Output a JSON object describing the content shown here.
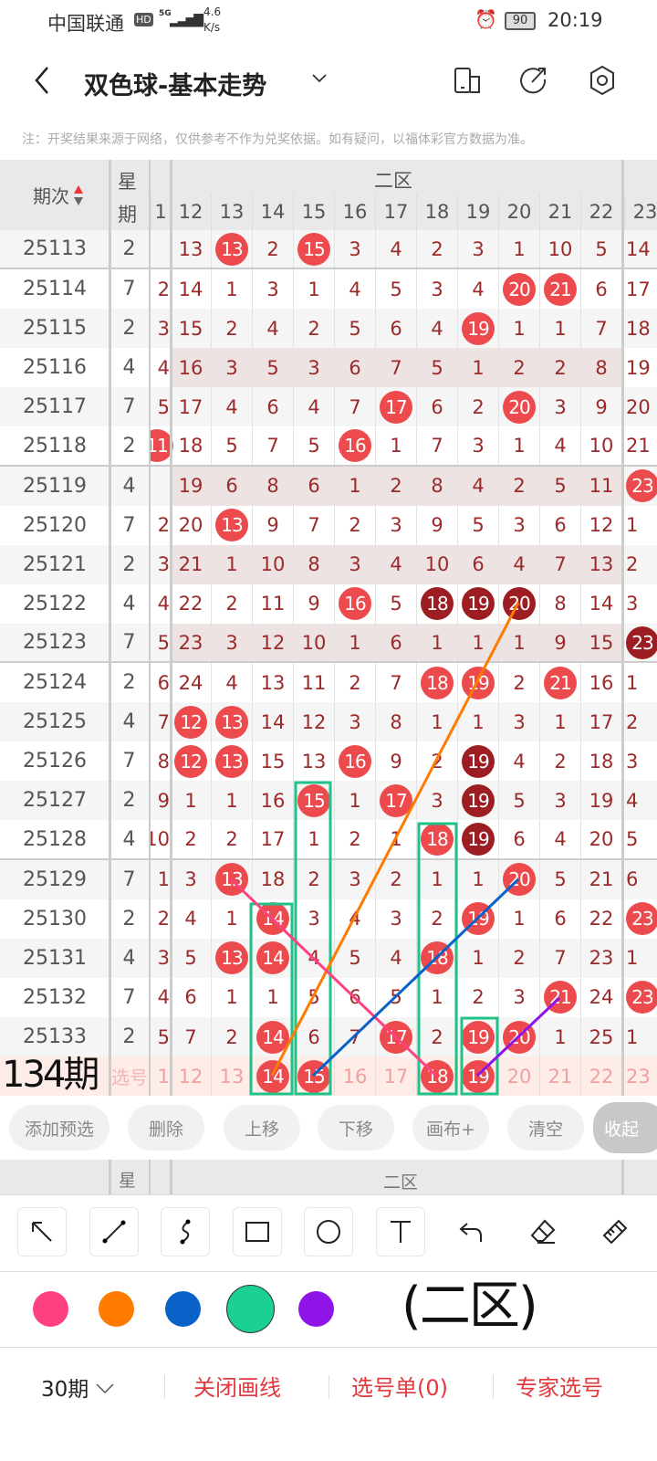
{
  "status_bar": {
    "carrier": "中国联通",
    "hd": "HD",
    "network": "5G",
    "speed_value": "4.6",
    "speed_unit": "K/s",
    "battery": "90",
    "time": "20:19"
  },
  "header": {
    "title": "双色球-基本走势",
    "icons": [
      "back-icon",
      "chevron-down-icon",
      "device-icon",
      "share-icon",
      "settings-icon"
    ]
  },
  "notice": "注：开奖结果来源于网络，仅供参考不作为兑奖依据。如有疑问，以福体彩官方数据为准。",
  "table": {
    "col_issue": "期次",
    "col_week_1": "星",
    "col_week_2": "期",
    "zone_label": "二区",
    "columns": [
      "1",
      "12",
      "13",
      "14",
      "15",
      "16",
      "17",
      "18",
      "19",
      "20",
      "21",
      "22",
      "23"
    ],
    "rows": [
      {
        "issue": "25113",
        "week": "2",
        "c11": "",
        "vals": [
          13,
          13,
          2,
          15,
          3,
          4,
          2,
          3,
          1,
          10,
          5
        ],
        "hits": [
          13,
          15
        ],
        "dark": [],
        "c23": "14",
        "h23": 0
      },
      {
        "issue": "25114",
        "week": "7",
        "c11": "2",
        "vals": [
          14,
          1,
          3,
          1,
          4,
          5,
          3,
          4,
          20,
          21,
          6
        ],
        "hits": [
          20,
          21
        ],
        "dark": [],
        "c23": "17",
        "h23": 0
      },
      {
        "issue": "25115",
        "week": "2",
        "c11": "3",
        "vals": [
          15,
          2,
          4,
          2,
          5,
          6,
          4,
          19,
          1,
          1,
          7
        ],
        "hits": [
          19
        ],
        "dark": [],
        "c23": "18",
        "h23": 0
      },
      {
        "issue": "25116",
        "week": "4",
        "c11": "4",
        "vals": [
          16,
          3,
          5,
          3,
          6,
          7,
          5,
          1,
          2,
          2,
          8
        ],
        "hits": [],
        "dark": [],
        "c23": "19",
        "h23": 0
      },
      {
        "issue": "25117",
        "week": "7",
        "c11": "5",
        "vals": [
          17,
          4,
          6,
          4,
          7,
          17,
          6,
          2,
          20,
          3,
          9
        ],
        "hits": [
          17,
          20
        ],
        "dark": [],
        "c23": "20",
        "h23": 0
      },
      {
        "issue": "25118",
        "week": "2",
        "c11": "11",
        "h11": 1,
        "vals": [
          18,
          5,
          7,
          5,
          16,
          1,
          7,
          3,
          1,
          4,
          10
        ],
        "hits": [
          16
        ],
        "dark": [],
        "c23": "21",
        "h23": 0
      },
      {
        "issue": "25119",
        "week": "4",
        "c11": "",
        "vals": [
          19,
          6,
          8,
          6,
          1,
          2,
          8,
          4,
          2,
          5,
          11
        ],
        "hits": [],
        "dark": [],
        "c23": "23",
        "h23": 1
      },
      {
        "issue": "25120",
        "week": "7",
        "c11": "2",
        "vals": [
          20,
          13,
          9,
          7,
          2,
          3,
          9,
          5,
          3,
          6,
          12
        ],
        "hits": [
          13
        ],
        "dark": [],
        "c23": "1",
        "h23": 0
      },
      {
        "issue": "25121",
        "week": "2",
        "c11": "3",
        "vals": [
          21,
          1,
          10,
          8,
          3,
          4,
          10,
          6,
          4,
          7,
          13
        ],
        "hits": [],
        "dark": [],
        "c23": "2",
        "h23": 0
      },
      {
        "issue": "25122",
        "week": "4",
        "c11": "4",
        "vals": [
          22,
          2,
          11,
          9,
          16,
          5,
          18,
          19,
          20,
          8,
          14
        ],
        "hits": [
          16,
          18,
          19,
          20
        ],
        "dark": [
          18,
          19,
          20
        ],
        "c23": "3",
        "h23": 0
      },
      {
        "issue": "25123",
        "week": "7",
        "c11": "5",
        "vals": [
          23,
          3,
          12,
          10,
          1,
          6,
          1,
          1,
          1,
          9,
          15
        ],
        "hits": [],
        "dark": [],
        "c23": "23",
        "h23": 2
      },
      {
        "issue": "25124",
        "week": "2",
        "c11": "6",
        "vals": [
          24,
          4,
          13,
          11,
          2,
          7,
          18,
          19,
          2,
          21,
          16
        ],
        "hits": [
          18,
          19,
          21
        ],
        "dark": [],
        "c23": "1",
        "h23": 0
      },
      {
        "issue": "25125",
        "week": "4",
        "c11": "7",
        "vals": [
          12,
          13,
          14,
          12,
          3,
          8,
          1,
          1,
          3,
          1,
          17
        ],
        "hits": [
          12,
          13
        ],
        "dark": [],
        "c23": "2",
        "h23": 0
      },
      {
        "issue": "25126",
        "week": "7",
        "c11": "8",
        "vals": [
          12,
          13,
          15,
          13,
          16,
          9,
          2,
          19,
          4,
          2,
          18
        ],
        "hits": [
          12,
          13,
          16,
          19
        ],
        "dark": [
          19
        ],
        "c23": "3",
        "h23": 0
      },
      {
        "issue": "25127",
        "week": "2",
        "c11": "9",
        "vals": [
          1,
          1,
          16,
          15,
          1,
          17,
          3,
          19,
          5,
          3,
          19
        ],
        "hits": [
          15,
          17,
          19
        ],
        "dark": [
          19
        ],
        "c23": "4",
        "h23": 0
      },
      {
        "issue": "25128",
        "week": "4",
        "c11": "10",
        "vals": [
          2,
          2,
          17,
          1,
          2,
          1,
          18,
          19,
          6,
          4,
          20
        ],
        "hits": [
          18,
          19
        ],
        "dark": [
          19
        ],
        "c23": "5",
        "h23": 0
      },
      {
        "issue": "25129",
        "week": "7",
        "c11": "1",
        "vals": [
          3,
          13,
          18,
          2,
          3,
          2,
          1,
          1,
          20,
          5,
          21
        ],
        "hits": [
          13,
          20
        ],
        "dark": [],
        "c23": "6",
        "h23": 0
      },
      {
        "issue": "25130",
        "week": "2",
        "c11": "2",
        "vals": [
          4,
          1,
          14,
          3,
          4,
          3,
          2,
          19,
          1,
          6,
          22
        ],
        "hits": [
          14,
          19
        ],
        "dark": [],
        "c23": "23",
        "h23": 1
      },
      {
        "issue": "25131",
        "week": "4",
        "c11": "3",
        "vals": [
          5,
          13,
          14,
          4,
          5,
          4,
          18,
          1,
          2,
          7,
          23
        ],
        "hits": [
          13,
          14,
          18
        ],
        "dark": [],
        "c23": "1",
        "h23": 0
      },
      {
        "issue": "25132",
        "week": "7",
        "c11": "4",
        "vals": [
          6,
          1,
          1,
          5,
          6,
          5,
          1,
          2,
          3,
          21,
          24
        ],
        "hits": [
          21
        ],
        "dark": [],
        "c23": "23",
        "h23": 1
      },
      {
        "issue": "25133",
        "week": "2",
        "c11": "5",
        "vals": [
          7,
          2,
          14,
          6,
          7,
          17,
          2,
          19,
          20,
          1,
          25
        ],
        "hits": [
          14,
          17,
          19,
          20
        ],
        "dark": [],
        "c23": "1",
        "h23": 0
      }
    ],
    "predict_row": {
      "label": "选号",
      "c11": "1",
      "vals": [
        12,
        13,
        14,
        15,
        16,
        17,
        18,
        19,
        20,
        21,
        22
      ],
      "hits": [
        14,
        15,
        18,
        19
      ],
      "c23": "23"
    }
  },
  "annotations": {
    "issue_note": "134期",
    "zone_note": "(二区)",
    "line_colors": [
      "#ff4081",
      "#ff7b00",
      "#0a62c9",
      "#8f14e8"
    ],
    "box_color": "#21c28a"
  },
  "actions": {
    "add_preselect": "添加预选",
    "delete": "删除",
    "move_up": "上移",
    "move_down": "下移",
    "canvas_plus": "画布+",
    "clear": "清空",
    "collapse": "收起"
  },
  "footer_header": {
    "week": "星",
    "zone": "二区"
  },
  "draw_tools": [
    "arrow-tool",
    "line-tool",
    "curve-tool",
    "rectangle-tool",
    "circle-tool",
    "text-tool",
    "undo",
    "eraser",
    "clear-brush"
  ],
  "colors": {
    "pink": "#ff4081",
    "orange": "#ff7b00",
    "blue": "#0a62c9",
    "green": "#1ad092",
    "purple": "#8f14e8",
    "selected": "green"
  },
  "bottom_bar": {
    "period": "30期",
    "close_draw": "关闭画线",
    "selection_list": "选号单(0)",
    "expert_pick": "专家选号"
  }
}
